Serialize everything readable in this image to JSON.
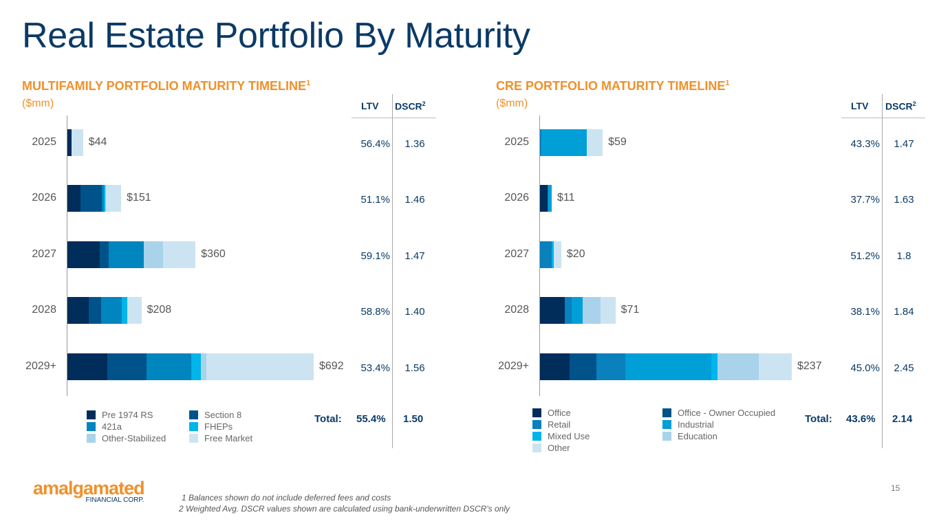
{
  "title": "Real Estate Portfolio By Maturity",
  "page_number": "15",
  "logo": {
    "name": "amalgamated",
    "sub": "FINANCIAL CORP."
  },
  "footnotes": [
    "1 Balances shown do not include deferred fees and costs",
    "2 Weighted Avg. DSCR values shown are calculated using bank-underwritten DSCR's only"
  ],
  "colors": {
    "title": "#0b3a66",
    "section_title": "#f0902a"
  },
  "multifamily_table": {
    "headers": {
      "ltv": "LTV",
      "dscr": "DSCR",
      "dscr_sup": "2"
    },
    "rows": [
      {
        "ltv": "56.4%",
        "dscr": "1.36"
      },
      {
        "ltv": "51.1%",
        "dscr": "1.46"
      },
      {
        "ltv": "59.1%",
        "dscr": "1.47"
      },
      {
        "ltv": "58.8%",
        "dscr": "1.40"
      },
      {
        "ltv": "53.4%",
        "dscr": "1.56"
      }
    ],
    "total": {
      "label": "Total:",
      "ltv": "55.4%",
      "dscr": "1.50"
    }
  },
  "cre_table": {
    "headers": {
      "ltv": "LTV",
      "dscr": "DSCR",
      "dscr_sup": "2"
    },
    "rows": [
      {
        "ltv": "43.3%",
        "dscr": "1.47"
      },
      {
        "ltv": "37.7%",
        "dscr": "1.63"
      },
      {
        "ltv": "51.2%",
        "dscr": "1.8"
      },
      {
        "ltv": "38.1%",
        "dscr": "1.84"
      },
      {
        "ltv": "45.0%",
        "dscr": "2.45"
      }
    ],
    "total": {
      "label": "Total:",
      "ltv": "43.6%",
      "dscr": "2.14"
    }
  },
  "chart_data": [
    {
      "type": "bar",
      "orientation": "horizontal-stacked",
      "title": "MULTIFAMILY PORTFOLIO MATURITY TIMELINE",
      "title_sup": "1",
      "subtitle": "($mm)",
      "categories": [
        "2025",
        "2026",
        "2027",
        "2028",
        "2029+"
      ],
      "totals": [
        44,
        151,
        360,
        208,
        692
      ],
      "total_labels": [
        "$44",
        "$151",
        "$360",
        "$208",
        "$692"
      ],
      "xlim": [
        0,
        692
      ],
      "legend_position": "bottom",
      "series": [
        {
          "name": "Pre 1974 RS",
          "color": "#002d5a",
          "values": [
            12,
            37,
            91,
            60,
            112
          ]
        },
        {
          "name": "Section 8",
          "color": "#00538a",
          "values": [
            0,
            60,
            25,
            35,
            110
          ]
        },
        {
          "name": "421a",
          "color": "#0085bf",
          "values": [
            0,
            6,
            99,
            58,
            126
          ]
        },
        {
          "name": "FHEPs",
          "color": "#00b4ec",
          "values": [
            0,
            3,
            0,
            15,
            27
          ]
        },
        {
          "name": "Other-Stabilized",
          "color": "#a9d3ea",
          "values": [
            0,
            2,
            54,
            0,
            15
          ]
        },
        {
          "name": "Free Market",
          "color": "#cce4f2",
          "values": [
            32,
            43,
            91,
            40,
            302
          ]
        }
      ],
      "legend_order": [
        "Pre 1974 RS",
        "Section 8",
        "421a",
        "FHEPs",
        "Other-Stabilized",
        "Free Market"
      ]
    },
    {
      "type": "bar",
      "orientation": "horizontal-stacked",
      "title": "CRE PORTFOLIO MATURITY TIMELINE",
      "title_sup": "1",
      "subtitle": "($mm)",
      "categories": [
        "2025",
        "2026",
        "2027",
        "2028",
        "2029+"
      ],
      "totals": [
        59,
        11,
        20,
        71,
        237
      ],
      "total_labels": [
        "$59",
        "$11",
        "$20",
        "$71",
        "$237"
      ],
      "xlim": [
        0,
        237
      ],
      "legend_position": "bottom",
      "series": [
        {
          "name": "Office",
          "color": "#002d5a",
          "values": [
            0,
            7,
            0,
            23,
            28
          ]
        },
        {
          "name": "Office - Owner Occupied",
          "color": "#00538a",
          "values": [
            0,
            0,
            0,
            0,
            25
          ]
        },
        {
          "name": "Retail",
          "color": "#0a80bd",
          "values": [
            1,
            1,
            11,
            7,
            27
          ]
        },
        {
          "name": "Industrial",
          "color": "#009fd8",
          "values": [
            43,
            3,
            0,
            10,
            81
          ]
        },
        {
          "name": "Mixed Use",
          "color": "#00b4ec",
          "values": [
            0,
            0,
            2,
            0,
            6
          ]
        },
        {
          "name": "Education",
          "color": "#a9d3ea",
          "values": [
            0,
            0,
            0,
            17,
            39
          ]
        },
        {
          "name": "Other",
          "color": "#cce4f2",
          "values": [
            15,
            0,
            7,
            14,
            31
          ]
        }
      ],
      "legend_order": [
        "Office",
        "Office - Owner Occupied",
        "Retail",
        "Industrial",
        "Mixed Use",
        "Education",
        "Other"
      ]
    }
  ]
}
